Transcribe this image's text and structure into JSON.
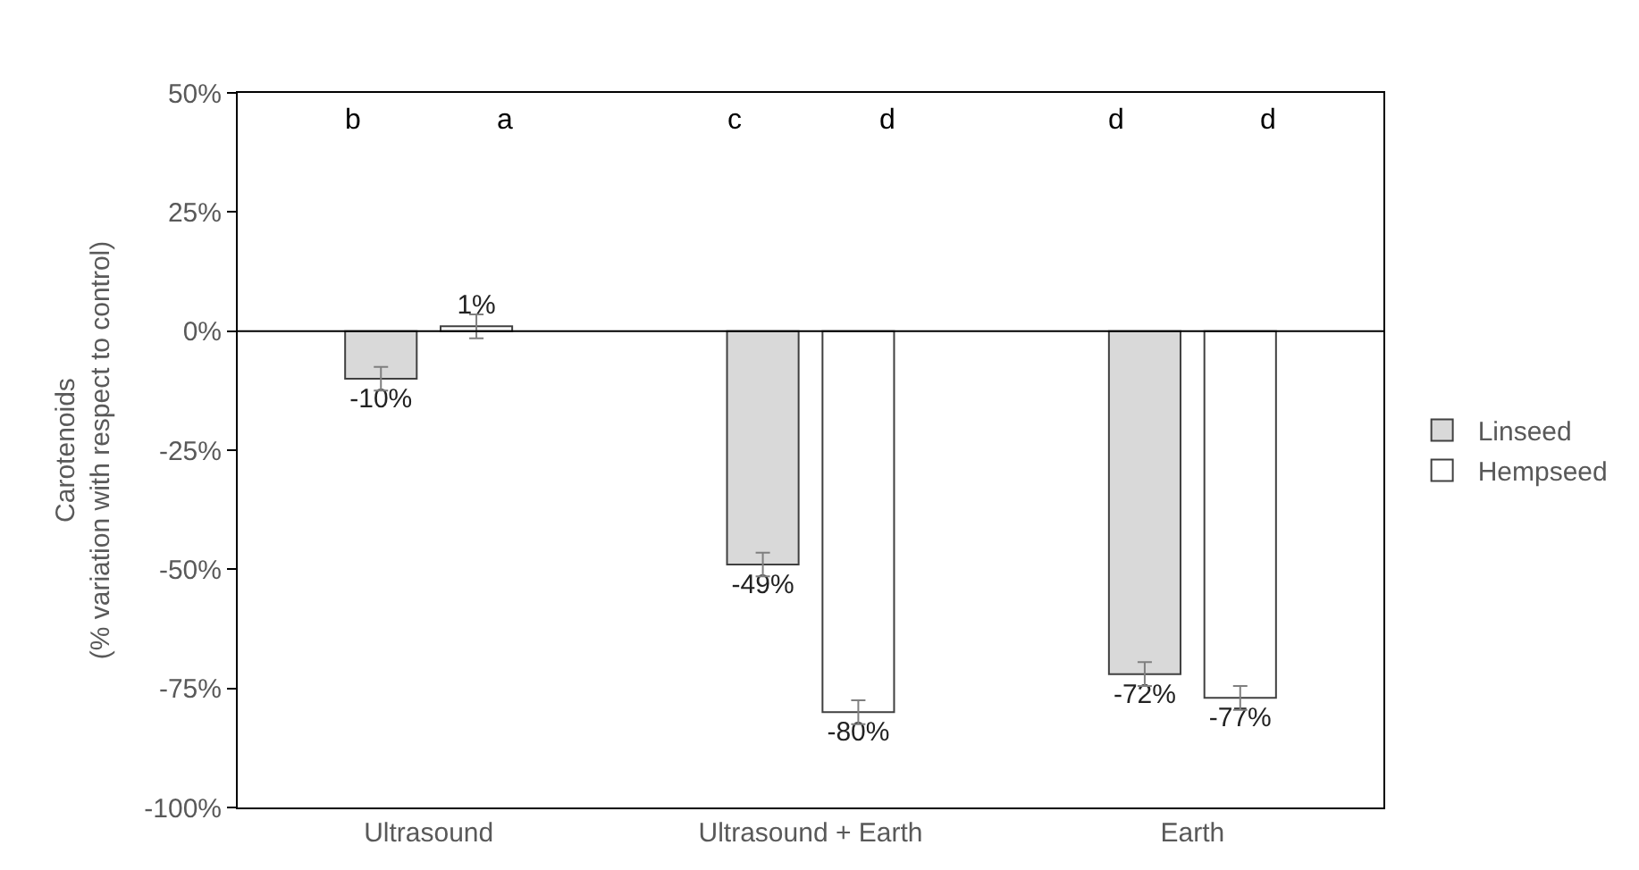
{
  "chart_data": {
    "type": "bar",
    "ylabel": "Carotenoids\n(% variation with respect to control)",
    "categories": [
      "Ultrasound",
      "Ultrasound + Earth",
      "Earth"
    ],
    "series": [
      {
        "name": "Linseed",
        "color": "#d9d9d9",
        "values": [
          -10,
          -49,
          -72
        ],
        "errors": [
          2.5,
          2.5,
          2.5
        ],
        "value_labels": [
          "-10%",
          "-49%",
          "-72%"
        ]
      },
      {
        "name": "Hempseed",
        "color": "#ffffff",
        "values": [
          1,
          -80,
          -77
        ],
        "errors": [
          2.5,
          2.5,
          2.5
        ],
        "value_labels": [
          "1%",
          "-80%",
          "-77%"
        ]
      }
    ],
    "ylim": [
      -100,
      50
    ],
    "yticks": [
      {
        "value": -100,
        "label": "-100%"
      },
      {
        "value": -75,
        "label": "-75%"
      },
      {
        "value": -50,
        "label": "-50%"
      },
      {
        "value": -25,
        "label": "-25%"
      },
      {
        "value": 0,
        "label": "0%"
      },
      {
        "value": 25,
        "label": "25%"
      },
      {
        "value": 50,
        "label": "50%"
      }
    ],
    "annotations": [
      "b",
      "a",
      "c",
      "d",
      "d",
      "d"
    ],
    "legend": "right"
  }
}
